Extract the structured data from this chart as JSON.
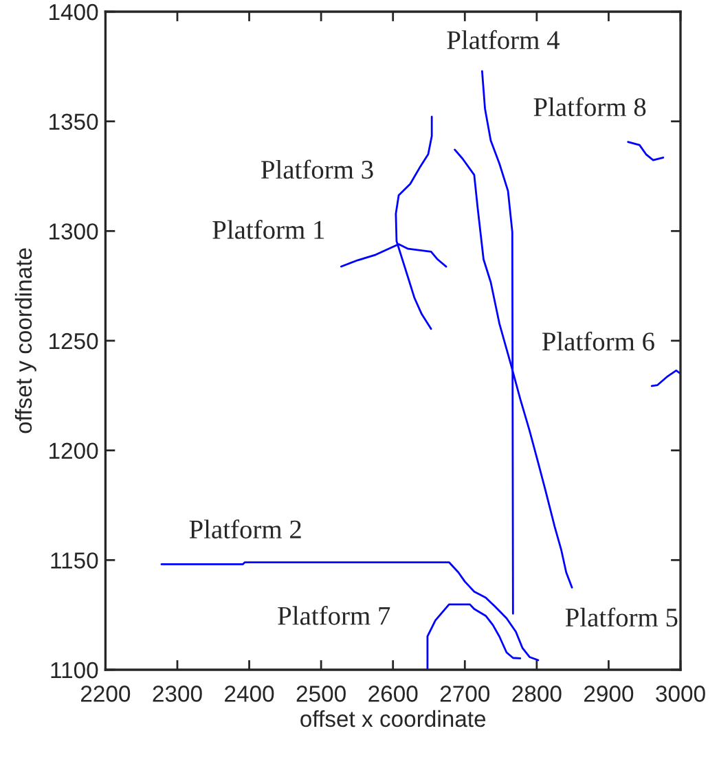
{
  "chart_data": {
    "type": "line",
    "xlabel": "offset x coordinate",
    "ylabel": "offset y coordinate",
    "xlim": [
      2200,
      3000
    ],
    "ylim": [
      1100,
      1400
    ],
    "xticks": [
      2200,
      2300,
      2400,
      2500,
      2600,
      2700,
      2800,
      2900,
      3000
    ],
    "yticks": [
      1100,
      1150,
      1200,
      1250,
      1300,
      1350,
      1400
    ],
    "grid": false,
    "legend": false,
    "marker": "none",
    "line_style": "solid",
    "series": [
      {
        "name": "Platform 1",
        "color": "#0000ff",
        "x": [
          2528,
          2551,
          2576,
          2608,
          2621,
          2653,
          2662,
          2674
        ],
        "values": [
          1283.8,
          1286.7,
          1289.2,
          1294,
          1291.9,
          1290.6,
          1287.1,
          1283.8
        ]
      },
      {
        "name": "Platform 2",
        "color": "#0000ff",
        "x": [
          2278,
          2391,
          2394,
          2678,
          2691,
          2700,
          2713,
          2729,
          2742,
          2758,
          2771,
          2780,
          2790,
          2802
        ],
        "values": [
          1148.1,
          1148.1,
          1149,
          1149,
          1144.4,
          1140.2,
          1135.6,
          1132.9,
          1128.8,
          1123.5,
          1117.3,
          1110,
          1105.8,
          1104.4
        ]
      },
      {
        "name": "Platform 3",
        "color": "#0000ff",
        "x": [
          2654,
          2654,
          2649,
          2637,
          2624,
          2608,
          2604,
          2605,
          2611,
          2621,
          2630,
          2640,
          2653
        ],
        "values": [
          1352.1,
          1343.3,
          1335,
          1328.8,
          1321.5,
          1316.3,
          1307.9,
          1295.4,
          1289.2,
          1278.8,
          1269.4,
          1262.1,
          1255.4
        ]
      },
      {
        "name": "Platform 4",
        "color": "#0000ff",
        "x": [
          2724,
          2728,
          2736,
          2748,
          2760,
          2766,
          2767
        ],
        "values": [
          1372.9,
          1355.8,
          1341.3,
          1330.8,
          1318.3,
          1299.6,
          1125.6
        ]
      },
      {
        "name": "Platform 5",
        "color": "#0000ff",
        "x": [
          2686,
          2697,
          2713,
          2718,
          2726,
          2736,
          2748,
          2764,
          2777,
          2790,
          2802,
          2812,
          2825,
          2834,
          2841,
          2849
        ],
        "values": [
          1337.1,
          1332.9,
          1325.6,
          1310,
          1287.1,
          1276.7,
          1257.9,
          1239.2,
          1223.5,
          1209,
          1194.4,
          1181.9,
          1165.2,
          1154.8,
          1144.4,
          1137.5
        ]
      },
      {
        "name": "Platform 6",
        "color": "#0000ff",
        "x": [
          2960,
          2968,
          2981,
          2994,
          3000
        ],
        "values": [
          1229.4,
          1229.8,
          1233.5,
          1236.4,
          1235
        ]
      },
      {
        "name": "Platform 7",
        "color": "#0000ff",
        "x": [
          2648,
          2648,
          2659,
          2678,
          2707,
          2713,
          2729,
          2739,
          2748,
          2758,
          2767,
          2777
        ],
        "values": [
          1100,
          1115.2,
          1122.5,
          1129.8,
          1129.8,
          1127.7,
          1124.6,
          1120.4,
          1115.2,
          1107.9,
          1105.4,
          1105.2
        ]
      },
      {
        "name": "Platform 8",
        "color": "#0000ff",
        "x": [
          2927,
          2943,
          2952,
          2962,
          2976
        ],
        "values": [
          1340.6,
          1339.2,
          1335,
          1332.3,
          1333.5
        ]
      }
    ]
  }
}
